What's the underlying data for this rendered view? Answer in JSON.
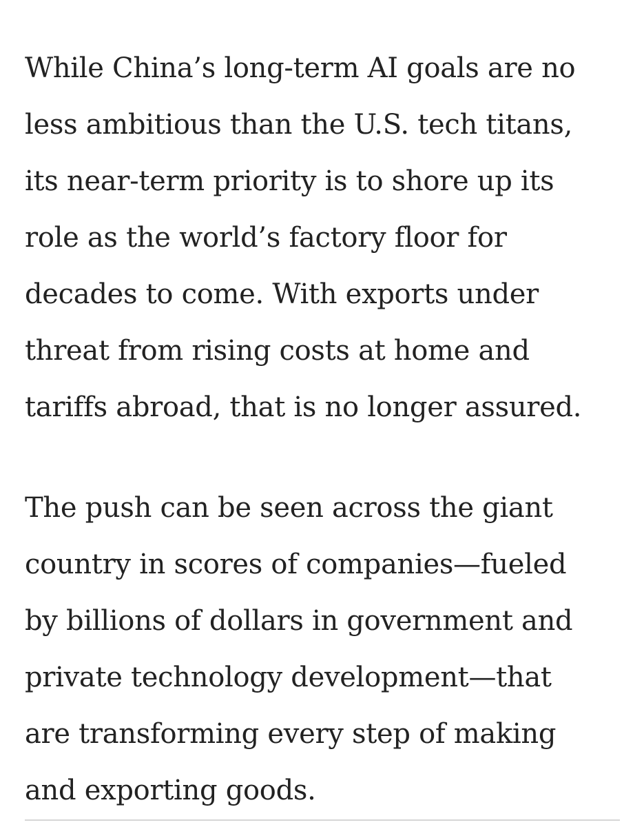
{
  "article": {
    "paragraphs": [
      {
        "lines": [
          "While China’s long-term AI goals are no",
          "less ambitious than the U.S. tech titans,",
          "its near-term priority is to shore up its",
          "role as the world’s factory floor for",
          "decades to come. With exports under",
          "threat from rising costs at home and",
          "tariffs abroad, that is no longer assured."
        ]
      },
      {
        "lines": [
          "The push can be seen across the giant",
          "country in scores of companies—fueled",
          "by billions of dollars in government and",
          "private technology development—that",
          "are transforming every step of making",
          "and exporting goods."
        ]
      }
    ]
  }
}
